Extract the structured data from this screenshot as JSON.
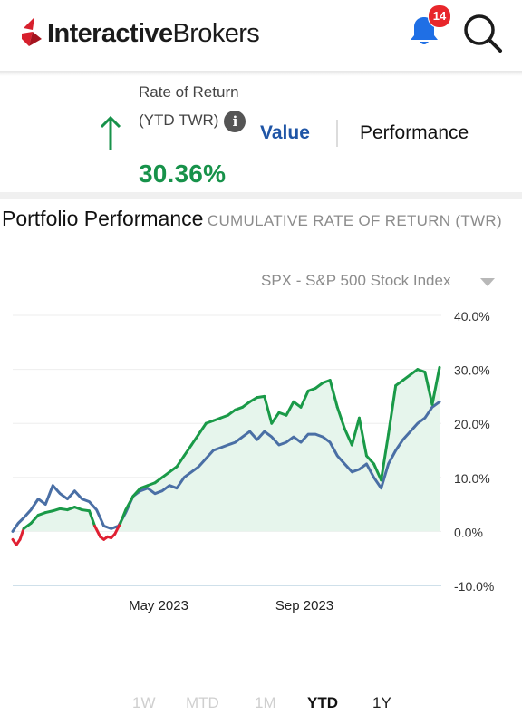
{
  "header": {
    "brand_bold": "Interactive",
    "brand_regular": "Brokers",
    "notification_count": "14",
    "icons": [
      "ib-logo-icon",
      "bell-icon",
      "search-icon"
    ],
    "accent_red": "#e8262b",
    "bell_color": "#1f6fe5"
  },
  "summary": {
    "label": "Rate of Return (YTD TWR)",
    "value": "30.36%",
    "direction": "up",
    "value_color": "#17924a",
    "tabs": [
      {
        "label": "Value",
        "active": false,
        "color": "#1f55a6"
      },
      {
        "label": "Performance",
        "active": true
      }
    ]
  },
  "section": {
    "title": "Portfolio Performance",
    "subtitle": "CUMULATIVE RATE OF RETURN (TWR)"
  },
  "benchmark": {
    "selected": "SPX - S&P 500 Stock Index"
  },
  "chart_data": {
    "type": "line",
    "title": "",
    "xlabel": "",
    "ylabel": "",
    "ylim": [
      -10,
      40
    ],
    "y_ticks": [
      "40.0%",
      "30.0%",
      "20.0%",
      "10.0%",
      "0.0%",
      "-10.0%"
    ],
    "y_tick_values": [
      40,
      30,
      20,
      10,
      0,
      -10
    ],
    "x_tick_labels": [
      "May 2023",
      "Sep 2023"
    ],
    "x_tick_values": [
      4.0,
      8.0
    ],
    "xlim": [
      0,
      11.75
    ],
    "grid": true,
    "legend": "none",
    "series": [
      {
        "role": "portfolio",
        "color": "#1a9a48",
        "negative_color": "#e02032",
        "area_fill": "#e6f5ec",
        "x": [
          0.0,
          0.1,
          0.2,
          0.3,
          0.5,
          0.7,
          0.9,
          1.1,
          1.3,
          1.5,
          1.7,
          1.9,
          2.1,
          2.25,
          2.4,
          2.5,
          2.6,
          2.7,
          2.8,
          2.95,
          3.1,
          3.3,
          3.5,
          3.7,
          3.9,
          4.1,
          4.3,
          4.5,
          4.7,
          4.9,
          5.1,
          5.3,
          5.5,
          5.7,
          5.9,
          6.1,
          6.3,
          6.5,
          6.7,
          6.9,
          7.1,
          7.3,
          7.5,
          7.7,
          7.9,
          8.1,
          8.3,
          8.5,
          8.7,
          8.9,
          9.1,
          9.3,
          9.5,
          9.7,
          9.9,
          10.1,
          10.3,
          10.5,
          10.7,
          10.9,
          11.1,
          11.3,
          11.5,
          11.7
        ],
        "values": [
          -1.5,
          -2.5,
          -1.5,
          0.5,
          1.5,
          3.0,
          3.5,
          3.8,
          4.2,
          4.0,
          4.5,
          4.0,
          3.8,
          1.0,
          -1.0,
          -1.5,
          -1.0,
          -1.2,
          -0.5,
          1.5,
          4.0,
          6.5,
          8.0,
          8.5,
          9.0,
          10.0,
          11.0,
          12.0,
          14.0,
          16.0,
          18.0,
          20.0,
          20.5,
          21.0,
          21.5,
          22.5,
          23.0,
          24.0,
          24.8,
          25.0,
          20.0,
          22.0,
          21.5,
          24.0,
          23.0,
          26.0,
          26.5,
          27.5,
          28.0,
          23.0,
          19.0,
          16.0,
          21.0,
          14.0,
          12.5,
          9.5,
          18.0,
          27.0,
          28.0,
          29.0,
          30.0,
          29.5,
          23.5,
          30.36
        ]
      },
      {
        "role": "benchmark",
        "name": "SPX - S&P 500 Stock Index",
        "color": "#4a6fa5",
        "x": [
          0.0,
          0.15,
          0.3,
          0.5,
          0.7,
          0.9,
          1.1,
          1.3,
          1.5,
          1.7,
          1.9,
          2.1,
          2.3,
          2.5,
          2.7,
          2.9,
          3.1,
          3.3,
          3.5,
          3.7,
          3.9,
          4.1,
          4.3,
          4.5,
          4.7,
          4.9,
          5.1,
          5.3,
          5.5,
          5.7,
          5.9,
          6.1,
          6.3,
          6.5,
          6.7,
          6.9,
          7.1,
          7.3,
          7.5,
          7.7,
          7.9,
          8.1,
          8.3,
          8.5,
          8.7,
          8.9,
          9.1,
          9.3,
          9.5,
          9.7,
          9.9,
          10.1,
          10.3,
          10.5,
          10.7,
          10.9,
          11.1,
          11.3,
          11.5,
          11.7
        ],
        "values": [
          0.0,
          1.5,
          2.5,
          4.0,
          6.0,
          5.0,
          8.5,
          7.0,
          6.0,
          7.5,
          6.0,
          5.5,
          4.0,
          1.0,
          0.5,
          1.0,
          3.5,
          6.5,
          7.5,
          8.0,
          7.0,
          7.5,
          8.5,
          8.0,
          10.0,
          11.0,
          12.0,
          13.5,
          15.0,
          15.5,
          16.0,
          16.5,
          17.5,
          18.5,
          17.0,
          18.5,
          17.5,
          16.0,
          16.5,
          17.5,
          16.5,
          18.0,
          18.0,
          17.5,
          16.5,
          14.0,
          12.5,
          11.0,
          11.5,
          12.5,
          10.0,
          8.0,
          12.5,
          15.0,
          17.0,
          18.5,
          20.0,
          21.0,
          23.0,
          24.0
        ]
      }
    ]
  },
  "timeframes": [
    {
      "label": "1W",
      "state": "disabled"
    },
    {
      "label": "MTD",
      "state": "disabled"
    },
    {
      "label": "1M",
      "state": "disabled"
    },
    {
      "label": "YTD",
      "state": "active"
    },
    {
      "label": "1Y",
      "state": "enabled"
    }
  ]
}
